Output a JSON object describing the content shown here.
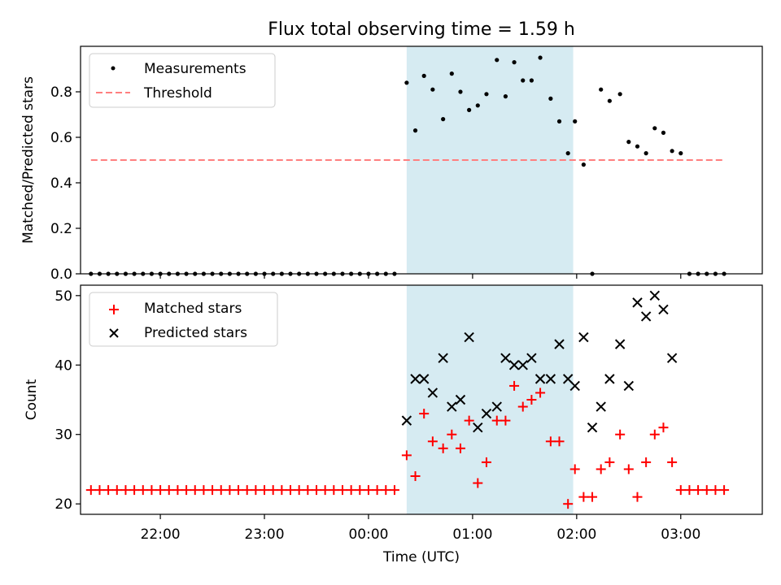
{
  "chart_data": {
    "title": "Flux total observing time = 1.59 h",
    "shaded_interval": {
      "start": "00:22",
      "end": "01:58",
      "color": "#add8e6"
    },
    "top": {
      "type": "scatter",
      "ylabel": "Matched/Predicted stars",
      "ylim": [
        0,
        1.0
      ],
      "yticks": [
        "0.0",
        "0.2",
        "0.4",
        "0.6",
        "0.8"
      ],
      "legend_position": "top-left",
      "series": [
        {
          "name": "Measurements",
          "marker": "dot",
          "color": "#000000",
          "x": [
            "21:20",
            "21:25",
            "21:30",
            "21:35",
            "21:40",
            "21:45",
            "21:50",
            "21:55",
            "22:00",
            "22:05",
            "22:10",
            "22:15",
            "22:20",
            "22:25",
            "22:30",
            "22:35",
            "22:40",
            "22:45",
            "22:50",
            "22:55",
            "23:00",
            "23:05",
            "23:10",
            "23:15",
            "23:20",
            "23:25",
            "23:30",
            "23:35",
            "23:40",
            "23:45",
            "23:50",
            "23:55",
            "00:00",
            "00:05",
            "00:10",
            "00:15",
            "00:22",
            "00:27",
            "00:32",
            "00:37",
            "00:43",
            "00:48",
            "00:53",
            "00:58",
            "01:03",
            "01:08",
            "01:14",
            "01:19",
            "01:24",
            "01:29",
            "01:34",
            "01:39",
            "01:45",
            "01:50",
            "01:55",
            "01:59",
            "02:04",
            "02:09",
            "02:14",
            "02:19",
            "02:25",
            "02:30",
            "02:35",
            "02:40",
            "02:45",
            "02:50",
            "02:55",
            "03:00",
            "03:05",
            "03:10",
            "03:15",
            "03:20",
            "03:25"
          ],
          "y": [
            0,
            0,
            0,
            0,
            0,
            0,
            0,
            0,
            0,
            0,
            0,
            0,
            0,
            0,
            0,
            0,
            0,
            0,
            0,
            0,
            0,
            0,
            0,
            0,
            0,
            0,
            0,
            0,
            0,
            0,
            0,
            0,
            0,
            0,
            0,
            0,
            0.84,
            0.63,
            0.87,
            0.81,
            0.68,
            0.88,
            0.8,
            0.72,
            0.74,
            0.79,
            0.94,
            0.78,
            0.93,
            0.85,
            0.85,
            0.95,
            0.77,
            0.67,
            0.53,
            0.67,
            0.48,
            0,
            0.81,
            0.76,
            0.79,
            0.58,
            0.56,
            0.53,
            0.64,
            0.62,
            0.54,
            0.53,
            0,
            0,
            0,
            0,
            0
          ]
        },
        {
          "name": "Threshold",
          "style": "dashed",
          "color": "#ff7f7f",
          "x": [
            "21:20",
            "03:25"
          ],
          "y": [
            0.5,
            0.5
          ]
        }
      ]
    },
    "bottom": {
      "type": "scatter",
      "ylabel": "Count",
      "ylim": [
        18.5,
        51.5
      ],
      "yticks": [
        "20",
        "30",
        "40",
        "50"
      ],
      "xlabel": "Time (UTC)",
      "xticks": [
        "22:00",
        "23:00",
        "00:00",
        "01:00",
        "02:00",
        "03:00"
      ],
      "legend_position": "top-left",
      "series": [
        {
          "name": "Matched stars",
          "marker": "plus",
          "color": "#ff0000",
          "x": [
            "21:20",
            "21:25",
            "21:30",
            "21:35",
            "21:40",
            "21:45",
            "21:50",
            "21:55",
            "22:00",
            "22:05",
            "22:10",
            "22:15",
            "22:20",
            "22:25",
            "22:30",
            "22:35",
            "22:40",
            "22:45",
            "22:50",
            "22:55",
            "23:00",
            "23:05",
            "23:10",
            "23:15",
            "23:20",
            "23:25",
            "23:30",
            "23:35",
            "23:40",
            "23:45",
            "23:50",
            "23:55",
            "00:00",
            "00:05",
            "00:10",
            "00:15",
            "00:22",
            "00:27",
            "00:32",
            "00:37",
            "00:43",
            "00:48",
            "00:53",
            "00:58",
            "01:03",
            "01:08",
            "01:14",
            "01:19",
            "01:24",
            "01:29",
            "01:34",
            "01:39",
            "01:45",
            "01:50",
            "01:55",
            "01:59",
            "02:04",
            "02:09",
            "02:14",
            "02:19",
            "02:25",
            "02:30",
            "02:35",
            "02:40",
            "02:45",
            "02:50",
            "02:55",
            "03:00",
            "03:05",
            "03:10",
            "03:15",
            "03:20",
            "03:25"
          ],
          "y": [
            22,
            22,
            22,
            22,
            22,
            22,
            22,
            22,
            22,
            22,
            22,
            22,
            22,
            22,
            22,
            22,
            22,
            22,
            22,
            22,
            22,
            22,
            22,
            22,
            22,
            22,
            22,
            22,
            22,
            22,
            22,
            22,
            22,
            22,
            22,
            22,
            27,
            24,
            33,
            29,
            28,
            30,
            28,
            32,
            23,
            26,
            32,
            32,
            37,
            34,
            35,
            36,
            29,
            29,
            20,
            25,
            21,
            21,
            25,
            26,
            30,
            25,
            21,
            26,
            30,
            31,
            26,
            22,
            22,
            22,
            22,
            22,
            22
          ]
        },
        {
          "name": "Predicted stars",
          "marker": "x",
          "color": "#000000",
          "x": [
            "00:22",
            "00:27",
            "00:32",
            "00:37",
            "00:43",
            "00:48",
            "00:53",
            "00:58",
            "01:03",
            "01:08",
            "01:14",
            "01:19",
            "01:24",
            "01:29",
            "01:34",
            "01:39",
            "01:45",
            "01:50",
            "01:55",
            "01:59",
            "02:04",
            "02:09",
            "02:14",
            "02:19",
            "02:25",
            "02:30",
            "02:35",
            "02:40",
            "02:45",
            "02:50",
            "02:55"
          ],
          "y": [
            32,
            38,
            38,
            36,
            41,
            34,
            35,
            44,
            31,
            33,
            34,
            41,
            40,
            40,
            41,
            38,
            38,
            43,
            38,
            37,
            44,
            31,
            34,
            38,
            43,
            37,
            49,
            47,
            50,
            48,
            41
          ]
        }
      ]
    }
  }
}
